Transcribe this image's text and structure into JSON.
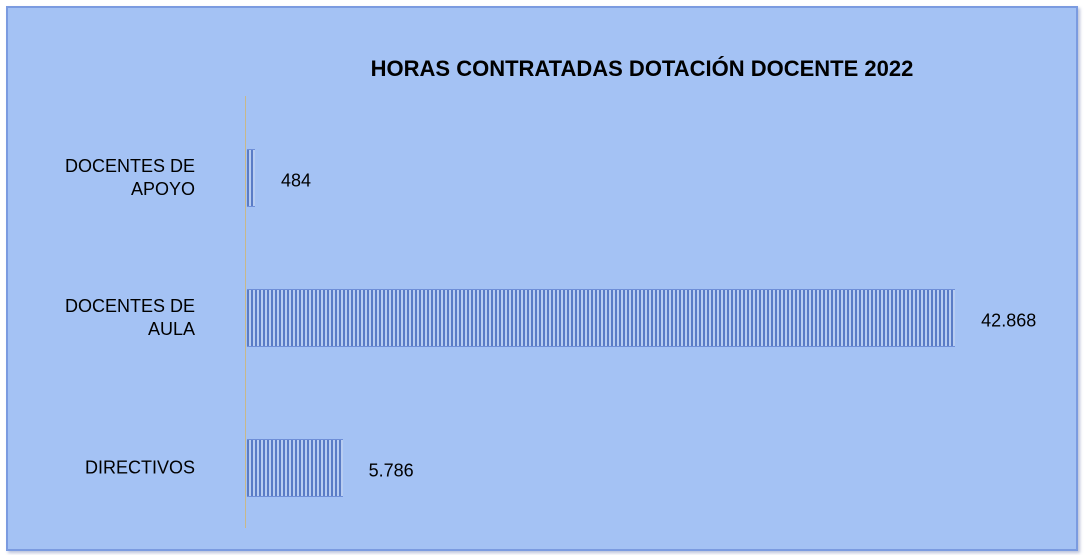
{
  "chart_data": {
    "type": "hbar",
    "title": "HORAS CONTRATADAS DOTACIÓN DOCENTE 2022",
    "categories": [
      "DOCENTES DE APOYO",
      "DOCENTES DE AULA",
      "DIRECTIVOS"
    ],
    "values": [
      484,
      42868,
      5786
    ],
    "value_labels": [
      "484",
      "42.868",
      "5.786"
    ],
    "color": "#5a7cc6",
    "xlim": [
      0,
      50000
    ]
  }
}
